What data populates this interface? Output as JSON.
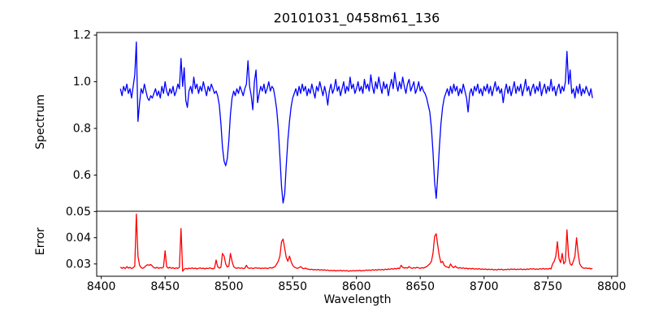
{
  "title": "20101031_0458m61_136",
  "chart_data": {
    "type": "line",
    "title": "20101031_0458m61_136",
    "xlabel": "Wavelength",
    "grid": false,
    "legend": "none",
    "xlim": [
      8396.4,
      8804.6
    ],
    "xticks": [
      {
        "v": 8400,
        "label": "8400"
      },
      {
        "v": 8450,
        "label": "8450"
      },
      {
        "v": 8500,
        "label": "8500"
      },
      {
        "v": 8550,
        "label": "8550"
      },
      {
        "v": 8600,
        "label": "8600"
      },
      {
        "v": 8650,
        "label": "8650"
      },
      {
        "v": 8700,
        "label": "8700"
      },
      {
        "v": 8750,
        "label": "8750"
      },
      {
        "v": 8800,
        "label": "8800"
      }
    ],
    "subplots": [
      {
        "ylabel": "Spectrum",
        "ylim": [
          0.445,
          1.211
        ],
        "yticks": [
          {
            "v": 0.6,
            "label": "0.6"
          },
          {
            "v": 0.8,
            "label": "0.8"
          },
          {
            "v": 1.0,
            "label": "1.0"
          },
          {
            "v": 1.2,
            "label": "1.2"
          }
        ],
        "series": [
          {
            "name": "spectrum",
            "color": "#0000ff",
            "x0": 8415,
            "dx": 1.25,
            "values": [
              0.97,
              0.94,
              0.98,
              0.96,
              0.99,
              0.95,
              0.97,
              0.93,
              0.98,
              1.03,
              1.17,
              0.83,
              0.91,
              0.97,
              0.95,
              0.99,
              0.96,
              0.93,
              0.92,
              0.94,
              0.93,
              0.95,
              0.97,
              0.94,
              0.96,
              0.93,
              0.98,
              0.95,
              1.0,
              0.96,
              0.94,
              0.97,
              0.95,
              0.98,
              0.94,
              0.96,
              0.99,
              0.97,
              1.1,
              0.98,
              1.06,
              0.92,
              0.89,
              0.96,
              0.98,
              0.95,
              1.02,
              0.97,
              0.99,
              0.95,
              0.98,
              0.96,
              1.0,
              0.97,
              0.94,
              0.98,
              0.96,
              0.99,
              0.97,
              0.95,
              0.96,
              0.94,
              0.9,
              0.82,
              0.72,
              0.66,
              0.64,
              0.67,
              0.75,
              0.86,
              0.93,
              0.96,
              0.94,
              0.97,
              0.95,
              0.98,
              0.96,
              0.94,
              0.97,
              0.99,
              1.09,
              0.98,
              0.94,
              0.88,
              1.0,
              1.05,
              0.91,
              0.95,
              0.98,
              0.96,
              0.99,
              0.95,
              0.97,
              1.0,
              0.96,
              0.98,
              0.97,
              0.93,
              0.88,
              0.8,
              0.68,
              0.55,
              0.48,
              0.52,
              0.64,
              0.75,
              0.83,
              0.89,
              0.93,
              0.95,
              0.97,
              0.94,
              0.98,
              0.95,
              0.99,
              0.96,
              0.98,
              0.94,
              0.97,
              0.95,
              0.99,
              0.96,
              0.93,
              0.98,
              0.96,
              1.0,
              0.97,
              0.94,
              0.98,
              0.95,
              0.9,
              0.96,
              0.99,
              0.95,
              0.97,
              1.01,
              0.96,
              0.98,
              0.94,
              0.97,
              1.0,
              0.95,
              0.98,
              0.96,
              1.02,
              0.97,
              0.99,
              0.95,
              0.97,
              1.0,
              0.96,
              0.98,
              0.95,
              1.01,
              0.97,
              0.99,
              0.96,
              1.03,
              0.98,
              0.95,
              1.0,
              0.97,
              1.02,
              0.98,
              0.95,
              1.0,
              0.97,
              0.99,
              0.94,
              0.98,
              1.01,
              0.97,
              1.04,
              0.99,
              0.96,
              1.0,
              0.97,
              1.02,
              0.98,
              0.95,
              0.99,
              1.01,
              0.96,
              0.98,
              1.0,
              0.95,
              0.97,
              1.0,
              0.96,
              0.98,
              0.96,
              0.95,
              0.93,
              0.9,
              0.87,
              0.8,
              0.7,
              0.57,
              0.5,
              0.6,
              0.72,
              0.82,
              0.89,
              0.93,
              0.95,
              0.97,
              0.94,
              0.98,
              0.95,
              0.99,
              0.96,
              0.98,
              0.94,
              0.97,
              0.95,
              0.99,
              0.96,
              0.93,
              0.87,
              0.95,
              0.97,
              0.94,
              0.98,
              0.96,
              0.99,
              0.95,
              0.97,
              0.94,
              0.98,
              0.96,
              0.99,
              0.95,
              0.98,
              0.94,
              0.97,
              1.0,
              0.96,
              0.98,
              0.95,
              0.97,
              0.91,
              0.96,
              0.99,
              0.95,
              0.98,
              0.94,
              0.97,
              1.0,
              0.95,
              0.98,
              0.96,
              0.99,
              0.94,
              0.97,
              1.01,
              0.96,
              0.98,
              0.94,
              0.97,
              0.99,
              0.95,
              0.98,
              0.96,
              1.0,
              0.94,
              0.97,
              0.99,
              0.95,
              0.98,
              0.96,
              1.01,
              0.96,
              0.98,
              0.94,
              0.97,
              0.99,
              0.95,
              0.98,
              0.96,
              1.0,
              1.13,
              0.99,
              1.05,
              0.95,
              0.97,
              0.93,
              0.98,
              0.95,
              0.99,
              0.94,
              0.97,
              0.95,
              0.98,
              0.96,
              0.94,
              0.97,
              0.93
            ]
          }
        ]
      },
      {
        "ylabel": "Error",
        "ylim": [
          0.0253,
          0.0501
        ],
        "yticks": [
          {
            "v": 0.03,
            "label": "0.03"
          },
          {
            "v": 0.04,
            "label": "0.04"
          },
          {
            "v": 0.05,
            "label": "0.05"
          }
        ],
        "series": [
          {
            "name": "error",
            "color": "#ff0000",
            "x0": 8415,
            "dx": 1.25,
            "values": [
              0.0288,
              0.0283,
              0.0287,
              0.0282,
              0.029,
              0.0284,
              0.0287,
              0.0282,
              0.0286,
              0.0292,
              0.049,
              0.033,
              0.0295,
              0.0286,
              0.0283,
              0.0287,
              0.0293,
              0.0297,
              0.0295,
              0.0298,
              0.0292,
              0.0286,
              0.0284,
              0.0287,
              0.0283,
              0.0286,
              0.0284,
              0.0288,
              0.035,
              0.029,
              0.0284,
              0.0287,
              0.0283,
              0.0286,
              0.0282,
              0.0285,
              0.0283,
              0.0287,
              0.0435,
              0.0272,
              0.028,
              0.0283,
              0.0281,
              0.0284,
              0.0282,
              0.0285,
              0.0282,
              0.0284,
              0.0281,
              0.0283,
              0.0285,
              0.0282,
              0.0284,
              0.0281,
              0.0284,
              0.0282,
              0.0285,
              0.0283,
              0.0281,
              0.0284,
              0.0315,
              0.029,
              0.0284,
              0.0287,
              0.034,
              0.033,
              0.03,
              0.0288,
              0.0292,
              0.034,
              0.031,
              0.029,
              0.0285,
              0.0283,
              0.0286,
              0.0283,
              0.0285,
              0.0282,
              0.0284,
              0.0295,
              0.0285,
              0.0283,
              0.0285,
              0.0282,
              0.0284,
              0.0286,
              0.0283,
              0.0285,
              0.0282,
              0.0284,
              0.0283,
              0.0285,
              0.0282,
              0.0284,
              0.0286,
              0.0284,
              0.0287,
              0.029,
              0.03,
              0.031,
              0.033,
              0.0385,
              0.0395,
              0.036,
              0.0325,
              0.031,
              0.033,
              0.031,
              0.0295,
              0.0288,
              0.0285,
              0.0283,
              0.0286,
              0.029,
              0.0284,
              0.0282,
              0.0284,
              0.0281,
              0.028,
              0.0278,
              0.028,
              0.0277,
              0.0279,
              0.0277,
              0.0279,
              0.0276,
              0.0278,
              0.0276,
              0.0278,
              0.0275,
              0.0277,
              0.0274,
              0.0276,
              0.0274,
              0.0276,
              0.0273,
              0.0275,
              0.0274,
              0.0276,
              0.0273,
              0.0275,
              0.0273,
              0.0275,
              0.0272,
              0.0274,
              0.0273,
              0.0275,
              0.0273,
              0.0275,
              0.0274,
              0.0276,
              0.0273,
              0.0275,
              0.0274,
              0.0277,
              0.0275,
              0.0277,
              0.0275,
              0.0278,
              0.0276,
              0.0278,
              0.0276,
              0.0279,
              0.0277,
              0.0279,
              0.0277,
              0.028,
              0.0278,
              0.0281,
              0.0279,
              0.0282,
              0.028,
              0.0283,
              0.0281,
              0.0284,
              0.0282,
              0.0295,
              0.0287,
              0.0284,
              0.0286,
              0.0284,
              0.029,
              0.0285,
              0.0283,
              0.0286,
              0.0284,
              0.0287,
              0.0285,
              0.0283,
              0.0286,
              0.0284,
              0.0287,
              0.029,
              0.0295,
              0.03,
              0.031,
              0.034,
              0.0405,
              0.0415,
              0.037,
              0.033,
              0.0305,
              0.031,
              0.0295,
              0.029,
              0.0288,
              0.0285,
              0.03,
              0.029,
              0.0286,
              0.0292,
              0.0286,
              0.0284,
              0.0286,
              0.0283,
              0.0285,
              0.0282,
              0.0284,
              0.0281,
              0.0283,
              0.0281,
              0.0283,
              0.028,
              0.0282,
              0.028,
              0.0282,
              0.0279,
              0.0281,
              0.0279,
              0.0281,
              0.0278,
              0.028,
              0.0278,
              0.028,
              0.0277,
              0.0279,
              0.0277,
              0.028,
              0.0278,
              0.028,
              0.0277,
              0.0279,
              0.0278,
              0.028,
              0.0278,
              0.0281,
              0.0279,
              0.0281,
              0.0278,
              0.028,
              0.0279,
              0.0281,
              0.0278,
              0.028,
              0.0278,
              0.0281,
              0.0279,
              0.0282,
              0.028,
              0.0282,
              0.0279,
              0.0281,
              0.0279,
              0.0282,
              0.028,
              0.0283,
              0.028,
              0.0282,
              0.028,
              0.0283,
              0.0281,
              0.03,
              0.031,
              0.033,
              0.0385,
              0.032,
              0.0305,
              0.034,
              0.03,
              0.031,
              0.043,
              0.033,
              0.03,
              0.0295,
              0.031,
              0.033,
              0.04,
              0.034,
              0.03,
              0.029,
              0.0285,
              0.0283,
              0.0285,
              0.0282,
              0.0284,
              0.0281,
              0.0283
            ]
          }
        ]
      }
    ]
  }
}
